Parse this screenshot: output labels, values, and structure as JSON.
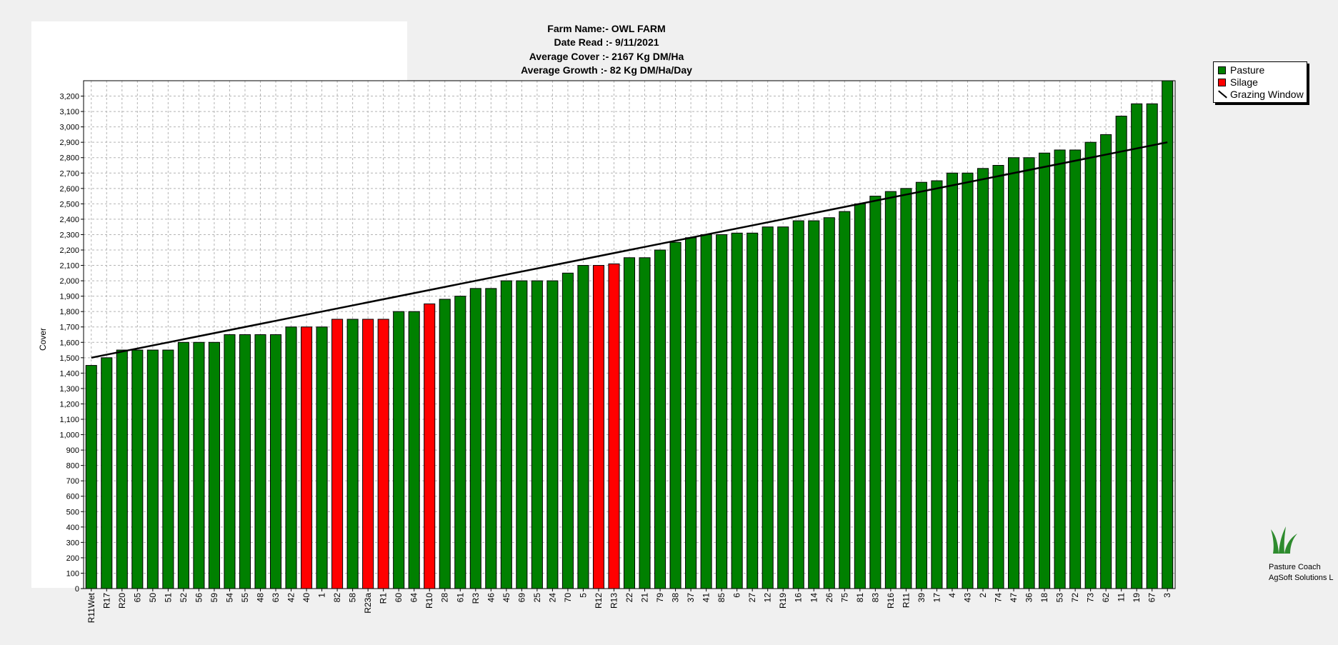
{
  "header": {
    "farm": "Farm Name:- OWL FARM",
    "date": "Date Read :-  9/11/2021",
    "cover": "Average Cover :-  2167 Kg DM/Ha",
    "growth": "Average Growth :-  82 Kg DM/Ha/Day"
  },
  "legend": {
    "pasture": "Pasture",
    "silage": "Silage",
    "window": "Grazing Window"
  },
  "brand": {
    "line1": "Pasture Coach",
    "line2": "AgSoft Solutions L",
    "icon": "grass-logo-icon"
  },
  "colors": {
    "pasture": "#008000",
    "silage": "#ff0000",
    "grid": "#b4b4b4",
    "window": "#000000"
  },
  "chart_data": {
    "type": "bar",
    "xlabel": "",
    "ylabel": "Cover",
    "ylim": [
      0,
      3300
    ],
    "ytick_step": 100,
    "grid": true,
    "legend_position": "top-right",
    "categories": [
      "R11Wet",
      "R17",
      "R20",
      "65",
      "50",
      "51",
      "52",
      "56",
      "59",
      "54",
      "55",
      "48",
      "63",
      "42",
      "40",
      "1",
      "82",
      "58",
      "R23a",
      "R1",
      "60",
      "64",
      "R10",
      "28",
      "61",
      "R3",
      "46",
      "45",
      "69",
      "25",
      "24",
      "70",
      "5",
      "R12",
      "R13",
      "22",
      "21",
      "79",
      "38",
      "37",
      "41",
      "85",
      "6",
      "27",
      "12",
      "R19",
      "16",
      "14",
      "26",
      "75",
      "81",
      "83",
      "R16",
      "R11",
      "39",
      "17",
      "4",
      "43",
      "2",
      "74",
      "47",
      "36",
      "18",
      "53",
      "72",
      "73",
      "62",
      "11",
      "19",
      "67",
      "3"
    ],
    "values": [
      1450,
      1500,
      1550,
      1550,
      1550,
      1550,
      1600,
      1600,
      1600,
      1650,
      1650,
      1650,
      1650,
      1700,
      1700,
      1700,
      1750,
      1750,
      1750,
      1750,
      1800,
      1800,
      1850,
      1880,
      1900,
      1950,
      1950,
      2000,
      2000,
      2000,
      2000,
      2050,
      2100,
      2100,
      2110,
      2150,
      2150,
      2200,
      2250,
      2280,
      2300,
      2300,
      2310,
      2310,
      2350,
      2350,
      2390,
      2390,
      2410,
      2450,
      2500,
      2550,
      2580,
      2600,
      2640,
      2650,
      2700,
      2700,
      2730,
      2750,
      2800,
      2800,
      2830,
      2850,
      2850,
      2900,
      2950,
      3070,
      3150,
      3150,
      3300
    ],
    "types": [
      "P",
      "P",
      "P",
      "P",
      "P",
      "P",
      "P",
      "P",
      "P",
      "P",
      "P",
      "P",
      "P",
      "P",
      "S",
      "P",
      "S",
      "P",
      "S",
      "S",
      "P",
      "P",
      "S",
      "P",
      "P",
      "P",
      "P",
      "P",
      "P",
      "P",
      "P",
      "P",
      "P",
      "S",
      "S",
      "P",
      "P",
      "P",
      "P",
      "P",
      "P",
      "P",
      "P",
      "P",
      "P",
      "P",
      "P",
      "P",
      "P",
      "P",
      "P",
      "P",
      "P",
      "P",
      "P",
      "P",
      "P",
      "P",
      "P",
      "P",
      "P",
      "P",
      "P",
      "P",
      "P",
      "P",
      "P",
      "P",
      "P",
      "P",
      "P"
    ],
    "grazing_window": {
      "start": 1500,
      "end": 2900
    }
  }
}
